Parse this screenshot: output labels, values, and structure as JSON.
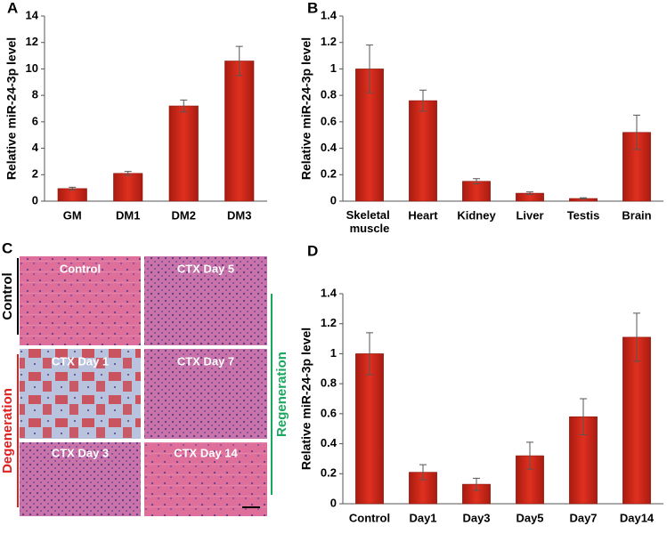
{
  "chart_data": [
    {
      "type": "bar",
      "panel_label": "A",
      "y_label": "Relative  miR-24-3p level",
      "categories": [
        "GM",
        "DM1",
        "DM2",
        "DM3"
      ],
      "values": [
        0.95,
        2.1,
        7.2,
        10.6
      ],
      "errors": [
        0.1,
        0.15,
        0.45,
        1.1
      ],
      "color": "#d0281a",
      "ylim": [
        0,
        14
      ],
      "yticks": [
        0,
        2,
        4,
        6,
        8,
        10,
        12,
        14
      ]
    },
    {
      "type": "bar",
      "panel_label": "B",
      "y_label": "Relative  miR-24-3p level",
      "categories": [
        "Skeletal muscle",
        "Heart",
        "Kidney",
        "Liver",
        "Testis",
        "Brain"
      ],
      "values": [
        1.0,
        0.76,
        0.15,
        0.06,
        0.02,
        0.52
      ],
      "errors": [
        0.18,
        0.08,
        0.02,
        0.01,
        0.005,
        0.13
      ],
      "color": "#d0281a",
      "ylim": [
        0,
        1.4
      ],
      "yticks": [
        0,
        0.2,
        0.4,
        0.6,
        0.8,
        1,
        1.2,
        1.4
      ]
    },
    {
      "type": "bar",
      "panel_label": "D",
      "y_label": "Relative  miR-24-3p level",
      "categories": [
        "Control",
        "Day1",
        "Day3",
        "Day5",
        "Day7",
        "Day14"
      ],
      "values": [
        1.0,
        0.21,
        0.13,
        0.32,
        0.58,
        1.11
      ],
      "errors": [
        0.14,
        0.05,
        0.04,
        0.09,
        0.12,
        0.16
      ],
      "color": "#d0281a",
      "ylim": [
        0,
        1.4
      ],
      "yticks": [
        0,
        0.2,
        0.4,
        0.6,
        0.8,
        1,
        1.2,
        1.4
      ]
    }
  ],
  "histology": {
    "panel_label": "C",
    "images": [
      "Control",
      "CTX Day 5",
      "CTX Day 1",
      "CTX Day 7",
      "CTX Day 3",
      "CTX Day 14"
    ],
    "side_labels": [
      "Control",
      "Degeneration",
      "Regeneration"
    ]
  }
}
